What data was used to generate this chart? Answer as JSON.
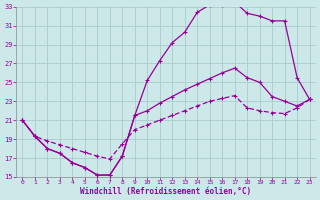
{
  "xlabel": "Windchill (Refroidissement éolien,°C)",
  "bg_color": "#cce8e8",
  "line_color": "#990099",
  "grid_color": "#aacccc",
  "xlim": [
    -0.5,
    23.5
  ],
  "ylim": [
    15,
    33
  ],
  "xticks": [
    0,
    1,
    2,
    3,
    4,
    5,
    6,
    7,
    8,
    9,
    10,
    11,
    12,
    13,
    14,
    15,
    16,
    17,
    18,
    19,
    20,
    21,
    22,
    23
  ],
  "yticks": [
    15,
    17,
    19,
    21,
    23,
    25,
    27,
    29,
    31,
    33
  ],
  "line1_x": [
    0,
    1,
    2,
    3,
    4,
    5,
    6,
    7,
    8,
    9,
    10,
    11,
    12,
    13,
    14,
    15,
    16,
    17,
    18,
    19,
    20,
    21,
    22,
    23
  ],
  "line1_y": [
    21,
    19.3,
    18.0,
    17.5,
    16.5,
    16.0,
    15.2,
    15.2,
    17.2,
    21.5,
    25.2,
    27.3,
    29.2,
    30.3,
    32.4,
    33.2,
    33.2,
    33.5,
    32.3,
    32.0,
    31.5,
    31.5,
    25.5,
    23.2
  ],
  "line2_x": [
    0,
    1,
    2,
    3,
    4,
    5,
    6,
    7,
    8,
    9,
    10,
    11,
    12,
    13,
    14,
    15,
    16,
    17,
    18,
    19,
    20,
    21,
    22,
    23
  ],
  "line2_y": [
    21,
    19.3,
    18.0,
    17.5,
    16.5,
    16.0,
    15.2,
    15.2,
    17.2,
    21.5,
    22.0,
    22.8,
    23.5,
    24.2,
    24.8,
    25.4,
    26.0,
    26.5,
    25.5,
    25.0,
    23.5,
    23.0,
    22.5,
    23.2
  ],
  "line3_x": [
    0,
    1,
    2,
    3,
    4,
    5,
    6,
    7,
    8,
    9,
    10,
    11,
    12,
    13,
    14,
    15,
    16,
    17,
    18,
    19,
    20,
    21,
    22,
    23
  ],
  "line3_y": [
    21,
    19.3,
    18.8,
    18.4,
    18.0,
    17.6,
    17.2,
    16.9,
    18.5,
    20.0,
    20.5,
    21.0,
    21.5,
    22.0,
    22.5,
    23.0,
    23.3,
    23.6,
    22.3,
    22.0,
    21.8,
    21.7,
    22.3,
    23.2
  ]
}
